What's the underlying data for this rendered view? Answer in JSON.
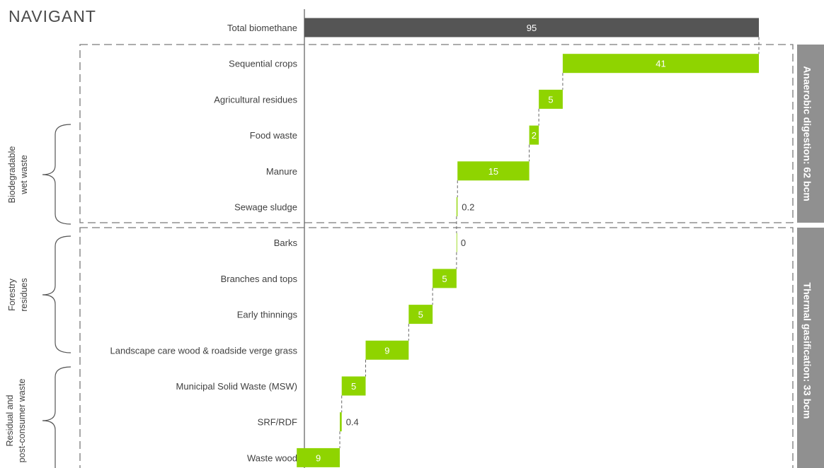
{
  "logo": "NAVIGANT",
  "colors": {
    "total": "#555555",
    "bar": "#8fd400",
    "side": "#909090",
    "text": "#404040"
  },
  "groups": [
    {
      "line1": "Biodegradable",
      "line2": "wet waste"
    },
    {
      "line1": "Forestry",
      "line2": "residues"
    },
    {
      "line1": "Residual and",
      "line2": "post-consumer waste"
    }
  ],
  "side_labels": [
    "Anaerobic digestion: 62 bcm",
    "Thermal gasification: 33 bcm"
  ],
  "chart_data": {
    "type": "bar",
    "subtype": "waterfall-horizontal",
    "categories": [
      "Total biomethane",
      "Sequential crops",
      "Agricultural residues",
      "Food waste",
      "Manure",
      "Sewage sludge",
      "Barks",
      "Branches and tops ",
      "Early thinnings ",
      "Landscape care wood & roadside verge grass",
      "Municipal Solid Waste (MSW)",
      "SRF/RDF",
      "Waste wood"
    ],
    "values": [
      95,
      41,
      5,
      2,
      15,
      0.2,
      0,
      5,
      5,
      9,
      5,
      0.4,
      9
    ],
    "labels": [
      "95",
      "41",
      "5",
      "2",
      "15",
      "0.2",
      "0",
      "5",
      "5",
      "9",
      "5",
      "0.4",
      "9"
    ],
    "xlim": [
      0,
      95
    ],
    "title": "",
    "xlabel": "",
    "ylabel": ""
  }
}
